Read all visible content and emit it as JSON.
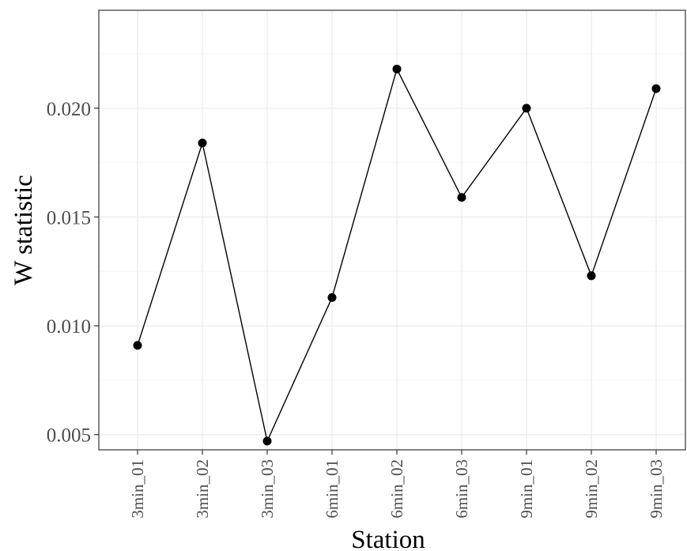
{
  "chart_data": {
    "type": "line",
    "xlabel": "Station",
    "ylabel": "W statistic",
    "categories": [
      "3min_01",
      "3min_02",
      "3min_03",
      "6min_01",
      "6min_02",
      "6min_03",
      "9min_01",
      "9min_02",
      "9min_03"
    ],
    "values": [
      0.0091,
      0.0184,
      0.0047,
      0.0113,
      0.0218,
      0.0159,
      0.02,
      0.0123,
      0.0209
    ],
    "y_ticks": [
      "0.005",
      "0.010",
      "0.015",
      "0.020"
    ],
    "ylim": [
      0.0043,
      0.0245
    ],
    "grid": true,
    "markers": true,
    "colors": {
      "line": "#000000",
      "point": "#000000",
      "grid_major": "#ebebeb",
      "grid_minor": "#f5f5f5",
      "panel_border": "#333333",
      "tick_text": "#4d4d4d"
    }
  }
}
